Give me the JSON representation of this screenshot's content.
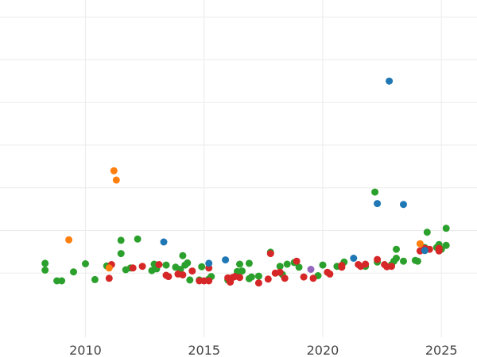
{
  "chart_data": {
    "type": "scatter",
    "title": "",
    "xlabel": "",
    "ylabel": "",
    "xlim": [
      2006.4,
      2026.5
    ],
    "ylim": [
      -1.5,
      6.4
    ],
    "x_ticks": [
      2010,
      2015,
      2020,
      2025
    ],
    "x_tick_labels": [
      "2010",
      "2015",
      "2020",
      "2025"
    ],
    "y_ticks": [
      0,
      1,
      2,
      3,
      4,
      5,
      6
    ],
    "y_tick_labels": [],
    "grid": true,
    "legend": "none",
    "series": [
      {
        "color": "#2ca02c",
        "points": [
          [
            2008.3,
            0.23
          ],
          [
            2008.3,
            0.07
          ],
          [
            2008.8,
            -0.18
          ],
          [
            2009.0,
            -0.18
          ],
          [
            2009.5,
            0.03
          ],
          [
            2010.0,
            0.22
          ],
          [
            2010.4,
            -0.15
          ],
          [
            2010.9,
            0.17
          ],
          [
            2011.5,
            0.77
          ],
          [
            2011.5,
            0.46
          ],
          [
            2011.7,
            0.08
          ],
          [
            2011.9,
            0.12
          ],
          [
            2012.2,
            0.8
          ],
          [
            2012.8,
            0.06
          ],
          [
            2012.9,
            0.21
          ],
          [
            2013.0,
            0.1
          ],
          [
            2013.4,
            0.19
          ],
          [
            2013.8,
            0.14
          ],
          [
            2014.0,
            0.09
          ],
          [
            2014.1,
            0.41
          ],
          [
            2014.2,
            0.19
          ],
          [
            2014.3,
            0.24
          ],
          [
            2014.4,
            -0.16
          ],
          [
            2014.8,
            -0.16
          ],
          [
            2014.9,
            0.15
          ],
          [
            2015.2,
            -0.14
          ],
          [
            2015.3,
            -0.08
          ],
          [
            2016.0,
            -0.16
          ],
          [
            2016.5,
            0.21
          ],
          [
            2016.4,
            0.04
          ],
          [
            2016.6,
            0.05
          ],
          [
            2016.9,
            0.23
          ],
          [
            2016.9,
            -0.13
          ],
          [
            2017.0,
            -0.09
          ],
          [
            2017.3,
            -0.07
          ],
          [
            2017.8,
            0.49
          ],
          [
            2018.2,
            0.16
          ],
          [
            2018.3,
            -0.03
          ],
          [
            2018.5,
            0.21
          ],
          [
            2018.8,
            0.25
          ],
          [
            2019.0,
            0.14
          ],
          [
            2019.8,
            -0.06
          ],
          [
            2020.0,
            0.19
          ],
          [
            2020.6,
            0.16
          ],
          [
            2020.9,
            0.26
          ],
          [
            2021.8,
            0.16
          ],
          [
            2022.2,
            1.9
          ],
          [
            2022.3,
            0.26
          ],
          [
            2022.9,
            0.2
          ],
          [
            2023.0,
            0.28
          ],
          [
            2023.1,
            0.35
          ],
          [
            2023.1,
            0.56
          ],
          [
            2023.4,
            0.28
          ],
          [
            2023.9,
            0.3
          ],
          [
            2024.0,
            0.28
          ],
          [
            2024.4,
            0.96
          ],
          [
            2024.3,
            0.6
          ],
          [
            2024.8,
            0.6
          ],
          [
            2024.9,
            0.67
          ],
          [
            2025.0,
            0.56
          ],
          [
            2025.2,
            1.05
          ],
          [
            2025.2,
            0.65
          ]
        ]
      },
      {
        "color": "#d62728",
        "points": [
          [
            2011.0,
            -0.12
          ],
          [
            2011.1,
            0.2
          ],
          [
            2012.0,
            0.12
          ],
          [
            2012.4,
            0.16
          ],
          [
            2013.1,
            0.2
          ],
          [
            2013.4,
            -0.05
          ],
          [
            2013.5,
            -0.08
          ],
          [
            2013.9,
            -0.02
          ],
          [
            2014.1,
            -0.04
          ],
          [
            2014.5,
            0.05
          ],
          [
            2014.8,
            -0.18
          ],
          [
            2015.0,
            -0.18
          ],
          [
            2015.2,
            0.12
          ],
          [
            2015.2,
            -0.18
          ],
          [
            2016.0,
            -0.11
          ],
          [
            2016.2,
            -0.1
          ],
          [
            2016.1,
            -0.21
          ],
          [
            2016.3,
            -0.08
          ],
          [
            2016.5,
            -0.1
          ],
          [
            2017.3,
            -0.23
          ],
          [
            2017.7,
            -0.14
          ],
          [
            2017.8,
            0.46
          ],
          [
            2018.0,
            0.0
          ],
          [
            2018.2,
            0.02
          ],
          [
            2018.4,
            -0.12
          ],
          [
            2018.9,
            0.28
          ],
          [
            2019.2,
            -0.09
          ],
          [
            2019.6,
            -0.12
          ],
          [
            2020.2,
            0.02
          ],
          [
            2020.3,
            -0.02
          ],
          [
            2020.8,
            0.14
          ],
          [
            2020.8,
            0.18
          ],
          [
            2021.5,
            0.2
          ],
          [
            2021.6,
            0.16
          ],
          [
            2021.8,
            0.21
          ],
          [
            2022.3,
            0.32
          ],
          [
            2022.6,
            0.2
          ],
          [
            2022.7,
            0.15
          ],
          [
            2022.9,
            0.16
          ],
          [
            2024.1,
            0.52
          ],
          [
            2024.3,
            0.58
          ],
          [
            2024.5,
            0.56
          ],
          [
            2024.9,
            0.52
          ],
          [
            2024.9,
            0.58
          ]
        ]
      },
      {
        "color": "#1f77b4",
        "points": [
          [
            2013.3,
            0.73
          ],
          [
            2015.2,
            0.23
          ],
          [
            2015.9,
            0.31
          ],
          [
            2021.3,
            0.35
          ],
          [
            2022.3,
            1.63
          ],
          [
            2022.8,
            4.5
          ],
          [
            2023.4,
            1.61
          ],
          [
            2024.3,
            0.53
          ]
        ]
      },
      {
        "color": "#ff7f0e",
        "points": [
          [
            2009.3,
            0.78
          ],
          [
            2011.0,
            0.12
          ],
          [
            2011.2,
            2.4
          ],
          [
            2011.3,
            2.18
          ],
          [
            2024.1,
            0.69
          ]
        ]
      },
      {
        "color": "#9467bd",
        "points": [
          [
            2019.5,
            0.09
          ]
        ]
      }
    ]
  }
}
